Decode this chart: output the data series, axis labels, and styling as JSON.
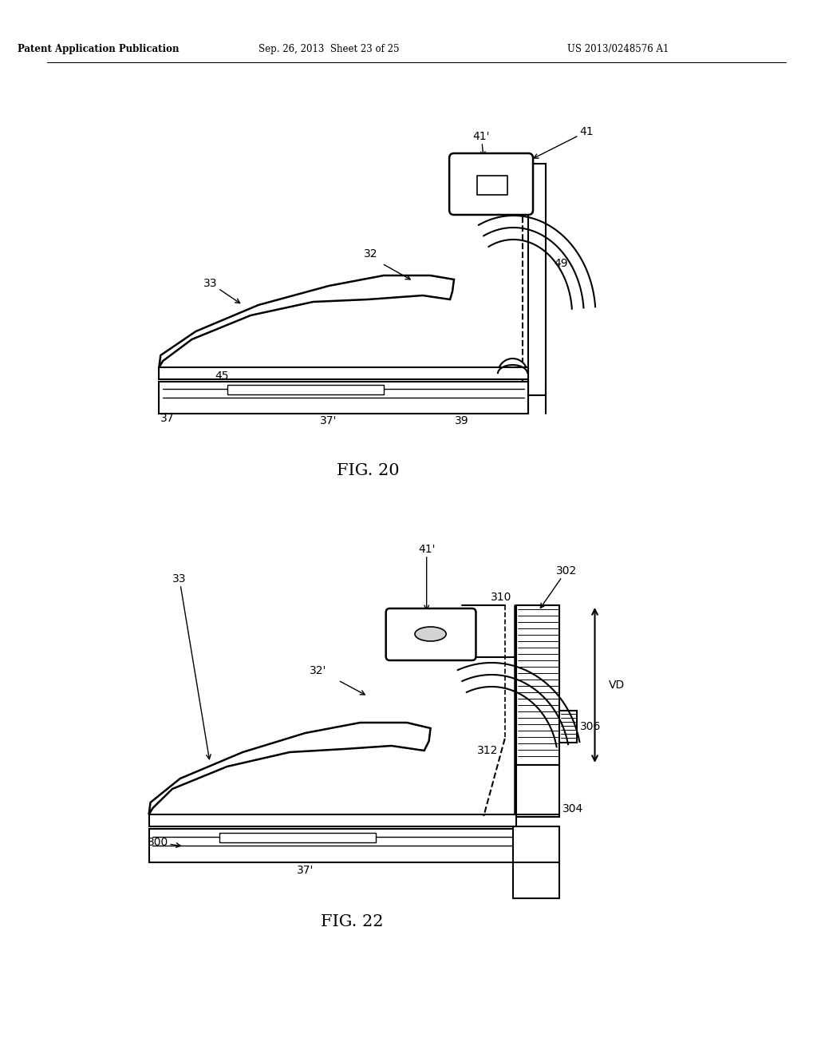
{
  "bg_color": "#ffffff",
  "text_color": "#000000",
  "line_color": "#000000",
  "header_left": "Patent Application Publication",
  "header_center": "Sep. 26, 2013  Sheet 23 of 25",
  "header_right": "US 2013/0248576 A1",
  "fig20_label": "FIG. 20",
  "fig22_label": "FIG. 22"
}
